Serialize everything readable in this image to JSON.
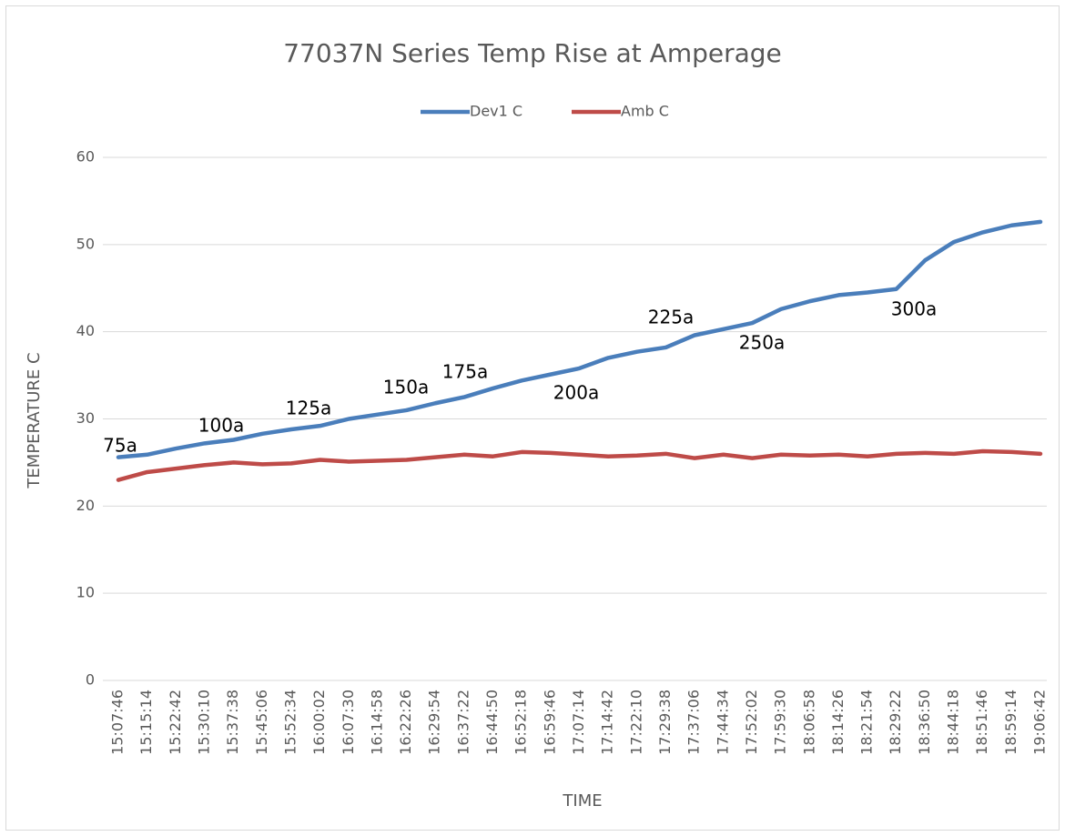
{
  "chart_data": {
    "type": "line",
    "title": "77037N Series Temp Rise at Amperage",
    "x_label": "TIME",
    "y_label": "TEMPERATURE C",
    "categories": [
      "15:07:46",
      "15:15:14",
      "15:22:42",
      "15:30:10",
      "15:37:38",
      "15:45:06",
      "15:52:34",
      "16:00:02",
      "16:07:30",
      "16:14:58",
      "16:22:26",
      "16:29:54",
      "16:37:22",
      "16:44:50",
      "16:52:18",
      "16:59:46",
      "17:07:14",
      "17:14:42",
      "17:22:10",
      "17:29:38",
      "17:37:06",
      "17:44:34",
      "17:52:02",
      "17:59:30",
      "18:06:58",
      "18:14:26",
      "18:21:54",
      "18:29:22",
      "18:36:50",
      "18:44:18",
      "18:51:46",
      "18:59:14",
      "19:06:42"
    ],
    "series": [
      {
        "name": "Dev1 C",
        "color": "#4a7ebb",
        "values": [
          25.6,
          25.9,
          26.6,
          27.2,
          27.6,
          28.3,
          28.8,
          29.2,
          30.0,
          30.5,
          31.0,
          31.8,
          32.5,
          33.5,
          34.4,
          35.1,
          35.8,
          37.0,
          37.7,
          38.2,
          39.6,
          40.3,
          41.0,
          42.6,
          43.5,
          44.2,
          44.5,
          44.9,
          48.2,
          50.3,
          51.4,
          52.2,
          52.6
        ]
      },
      {
        "name": "Amb C",
        "color": "#be4b48",
        "values": [
          23.0,
          23.9,
          24.3,
          24.7,
          25.0,
          24.8,
          24.9,
          25.3,
          25.1,
          25.2,
          25.3,
          25.6,
          25.9,
          25.7,
          26.2,
          26.1,
          25.9,
          25.7,
          25.8,
          26.0,
          25.5,
          25.9,
          25.5,
          25.9,
          25.8,
          25.9,
          25.7,
          26.0,
          26.1,
          26.0,
          26.3,
          26.2,
          26.0
        ]
      }
    ],
    "annotations": [
      "75a",
      "100a",
      "125a",
      "150a",
      "175a",
      "200a",
      "225a",
      "250a",
      "300a"
    ],
    "ylim": [
      0,
      60
    ],
    "yticks": [
      0,
      10,
      20,
      30,
      40,
      50,
      60
    ],
    "grid": true,
    "legend": "top"
  }
}
